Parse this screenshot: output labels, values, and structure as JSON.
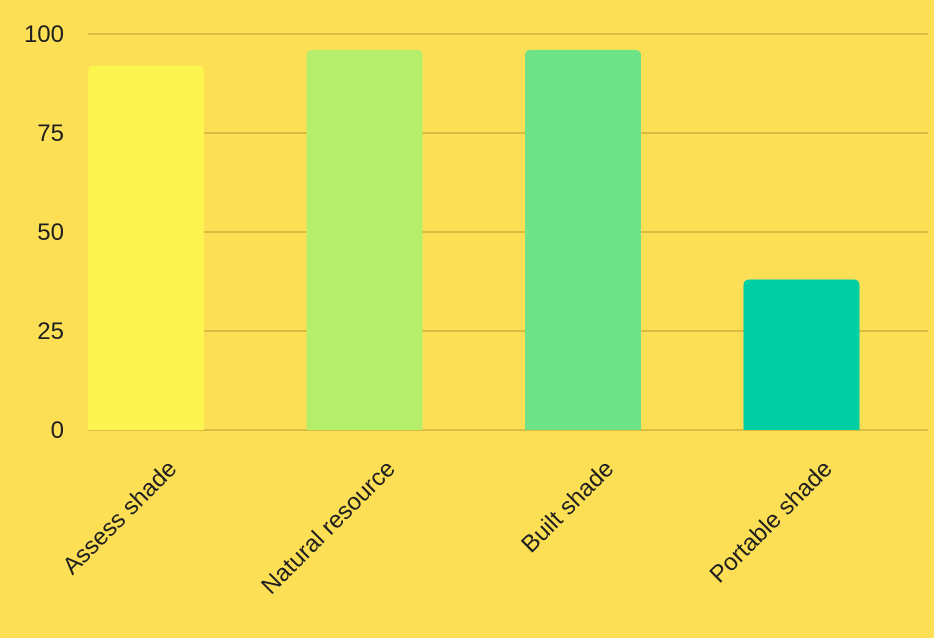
{
  "chart_data": {
    "type": "bar",
    "categories": [
      "Assess shade",
      "Natural resource",
      "Built shade",
      "Portable shade"
    ],
    "values": [
      92,
      96,
      96,
      38
    ],
    "title": "",
    "xlabel": "",
    "ylabel": "",
    "ylim": [
      0,
      100
    ],
    "y_ticks": [
      "0",
      "25",
      "50",
      "75",
      "100"
    ],
    "grid": true,
    "legend": "none",
    "colors": {
      "background": "#fddf56",
      "gridline": "#b89a2e",
      "bars": [
        "#fdf54f",
        "#b4ee6a",
        "#6ee287",
        "#00cfa6"
      ],
      "text": "#1f1f1f"
    }
  }
}
